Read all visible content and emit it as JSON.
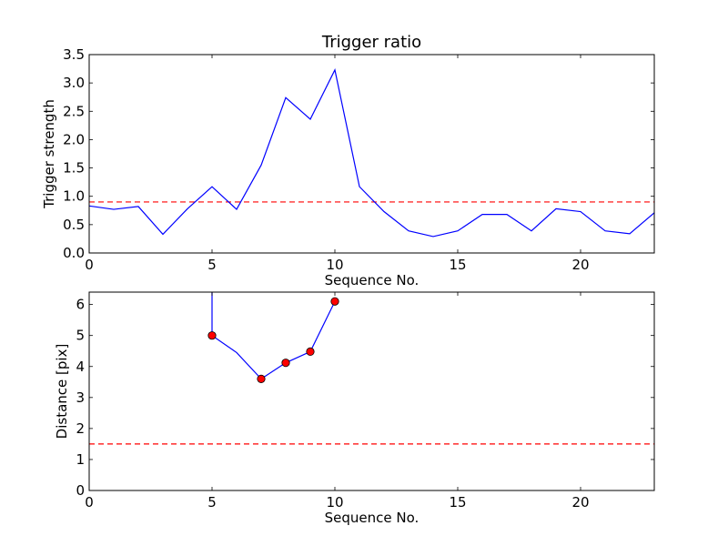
{
  "chart_data": [
    {
      "type": "line",
      "title": "Trigger ratio",
      "xlabel": "Sequence No.",
      "ylabel": "Trigger strength",
      "xlim": [
        0,
        23
      ],
      "ylim": [
        0,
        3.5
      ],
      "xticks": [
        0,
        5,
        10,
        15,
        20
      ],
      "yticks": [
        0.0,
        0.5,
        1.0,
        1.5,
        2.0,
        2.5,
        3.0,
        3.5
      ],
      "ytick_labels": [
        "0.0",
        "0.5",
        "1.0",
        "1.5",
        "2.0",
        "2.5",
        "3.0",
        "3.5"
      ],
      "grid": false,
      "threshold": 0.9,
      "series": [
        {
          "color": "#0000ff",
          "x": [
            0,
            1,
            2,
            3,
            4,
            5,
            6,
            7,
            8,
            9,
            10,
            11,
            12,
            13,
            14,
            15,
            16,
            17,
            18,
            19,
            20,
            21,
            22,
            23
          ],
          "y": [
            0.83,
            0.77,
            0.82,
            0.33,
            0.78,
            1.17,
            0.77,
            1.55,
            2.74,
            2.36,
            3.23,
            1.17,
            0.73,
            0.39,
            0.29,
            0.39,
            0.68,
            0.68,
            0.39,
            0.78,
            0.73,
            0.39,
            0.34,
            0.71
          ]
        }
      ],
      "threshold_color": "#ff0000"
    },
    {
      "type": "line",
      "title": "",
      "xlabel": "Sequence No.",
      "ylabel": "Distance [pix]",
      "xlim": [
        0,
        23
      ],
      "ylim": [
        0,
        6.4
      ],
      "xticks": [
        0,
        5,
        10,
        15,
        20
      ],
      "yticks": [
        0,
        1,
        2,
        3,
        4,
        5,
        6
      ],
      "ytick_labels": [
        "0",
        "1",
        "2",
        "3",
        "4",
        "5",
        "6"
      ],
      "grid": false,
      "threshold": 1.5,
      "series": [
        {
          "color": "#0000ff",
          "marker_color": "#ff0000",
          "x": [
            5,
            5,
            6,
            7,
            8,
            9,
            10
          ],
          "y": [
            6.4,
            5.0,
            4.45,
            3.6,
            4.12,
            4.48,
            6.1
          ],
          "markers": [
            false,
            true,
            false,
            true,
            true,
            true,
            true
          ]
        }
      ],
      "threshold_color": "#ff0000"
    }
  ]
}
